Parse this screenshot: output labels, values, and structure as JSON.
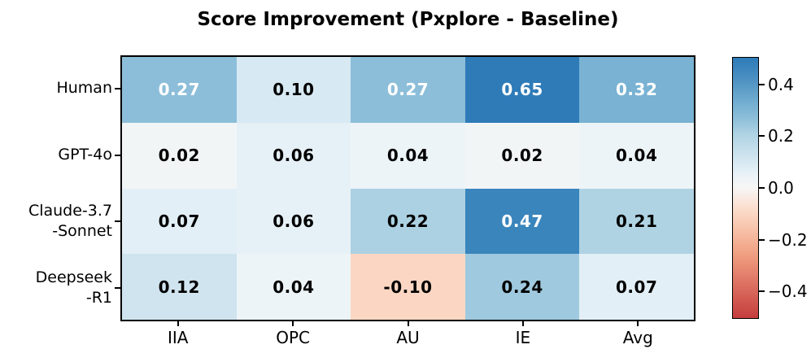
{
  "title": "Score Improvement (Pxplore - Baseline)",
  "chart_data": {
    "type": "heatmap",
    "rows": [
      "Human",
      "GPT-4o",
      "Claude-3.7-Sonnet",
      "Deepseek-R1"
    ],
    "row_label_lines": [
      [
        "Human"
      ],
      [
        "GPT-4o"
      ],
      [
        "Claude-3.7",
        "-Sonnet"
      ],
      [
        "Deepseek",
        "-R1"
      ]
    ],
    "columns": [
      "IIA",
      "OPC",
      "AU",
      "IE",
      "Avg"
    ],
    "values": [
      [
        0.27,
        0.1,
        0.27,
        0.65,
        0.32
      ],
      [
        0.02,
        0.06,
        0.04,
        0.02,
        0.04
      ],
      [
        0.07,
        0.06,
        0.22,
        0.47,
        0.21
      ],
      [
        0.12,
        0.04,
        -0.1,
        0.24,
        0.07
      ]
    ],
    "cell_labels": [
      [
        "0.27",
        "0.10",
        "0.27",
        "0.65",
        "0.32"
      ],
      [
        "0.02",
        "0.06",
        "0.04",
        "0.02",
        "0.04"
      ],
      [
        "0.07",
        "0.06",
        "0.22",
        "0.47",
        "0.21"
      ],
      [
        "0.12",
        "0.04",
        "-0.10",
        "0.24",
        "0.07"
      ]
    ],
    "colorbar": {
      "tick_labels": [
        "0.4",
        "0.2",
        "0.0",
        "−0.2",
        "−0.4"
      ],
      "tick_values": [
        0.4,
        0.2,
        0.0,
        -0.2,
        -0.4
      ],
      "vmin": -0.507,
      "vmax": 0.507
    },
    "legend_position": "right",
    "grid": false
  },
  "style": {
    "background": "#ffffff",
    "border_color": "#000000",
    "text_color": "#000000",
    "cell_text_dark": "#000000",
    "cell_text_light": "#ffffff",
    "white_text_threshold": 0.26,
    "colormap": [
      {
        "v": -0.507,
        "color": "#c63d3d"
      },
      {
        "v": -0.25,
        "color": "#f2a284"
      },
      {
        "v": -0.1,
        "color": "#fbd7c3"
      },
      {
        "v": 0.0,
        "color": "#f7f6f5"
      },
      {
        "v": 0.05,
        "color": "#eaf3f8"
      },
      {
        "v": 0.1,
        "color": "#d7e9f2"
      },
      {
        "v": 0.15,
        "color": "#c5ddeb"
      },
      {
        "v": 0.22,
        "color": "#abd1e2"
      },
      {
        "v": 0.27,
        "color": "#8cbed9"
      },
      {
        "v": 0.32,
        "color": "#79b2d3"
      },
      {
        "v": 0.4,
        "color": "#5697c5"
      },
      {
        "v": 0.47,
        "color": "#3a85bc"
      },
      {
        "v": 0.507,
        "color": "#2e7bb8"
      }
    ]
  }
}
